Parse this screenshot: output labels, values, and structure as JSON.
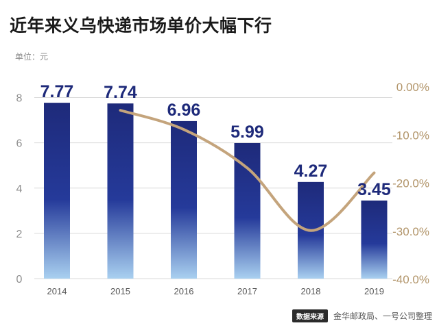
{
  "title": "近年来义乌快递市场单价大幅下行",
  "unit_label": "单位：元",
  "source_badge": "数据来源",
  "source_text": "金华邮政局、一号公司整理",
  "colors": {
    "bar_top": "#1e2a7a",
    "bar_mid": "#253a9a",
    "bar_bottom": "#a9d0f0",
    "line": "#c4a47c",
    "axis_text": "#8f8f8f",
    "right_axis_text": "#b2956a",
    "value_label": "#1e2a7a",
    "grid": "#d9d9d9"
  },
  "chart_data": {
    "type": "bar",
    "categories": [
      "2014",
      "2015",
      "2016",
      "2017",
      "2018",
      "2019"
    ],
    "series": [
      {
        "name": "",
        "type": "bar",
        "axis": "left",
        "values": [
          7.77,
          7.74,
          6.96,
          5.99,
          4.27,
          3.45
        ]
      },
      {
        "name": "",
        "type": "line",
        "axis": "right",
        "smooth": true,
        "x": [
          "2015",
          "2016",
          "2017",
          "2018",
          "2019"
        ],
        "values": [
          -5.0,
          -9.0,
          -17.0,
          -30.0,
          -18.0
        ]
      }
    ],
    "data_labels": [
      "7.77",
      "7.74",
      "6.96",
      "5.99",
      "4.27",
      "3.45"
    ],
    "yticks_left": [
      "0",
      "2",
      "4",
      "6",
      "8"
    ],
    "ylim_left": [
      0,
      8.5
    ],
    "yticks_right": [
      "0.00%",
      "-10.0%",
      "-20.0%",
      "-30.0%",
      "-40.0%"
    ],
    "ylim_right": [
      -40,
      0
    ],
    "grid": true,
    "legend": "none"
  }
}
